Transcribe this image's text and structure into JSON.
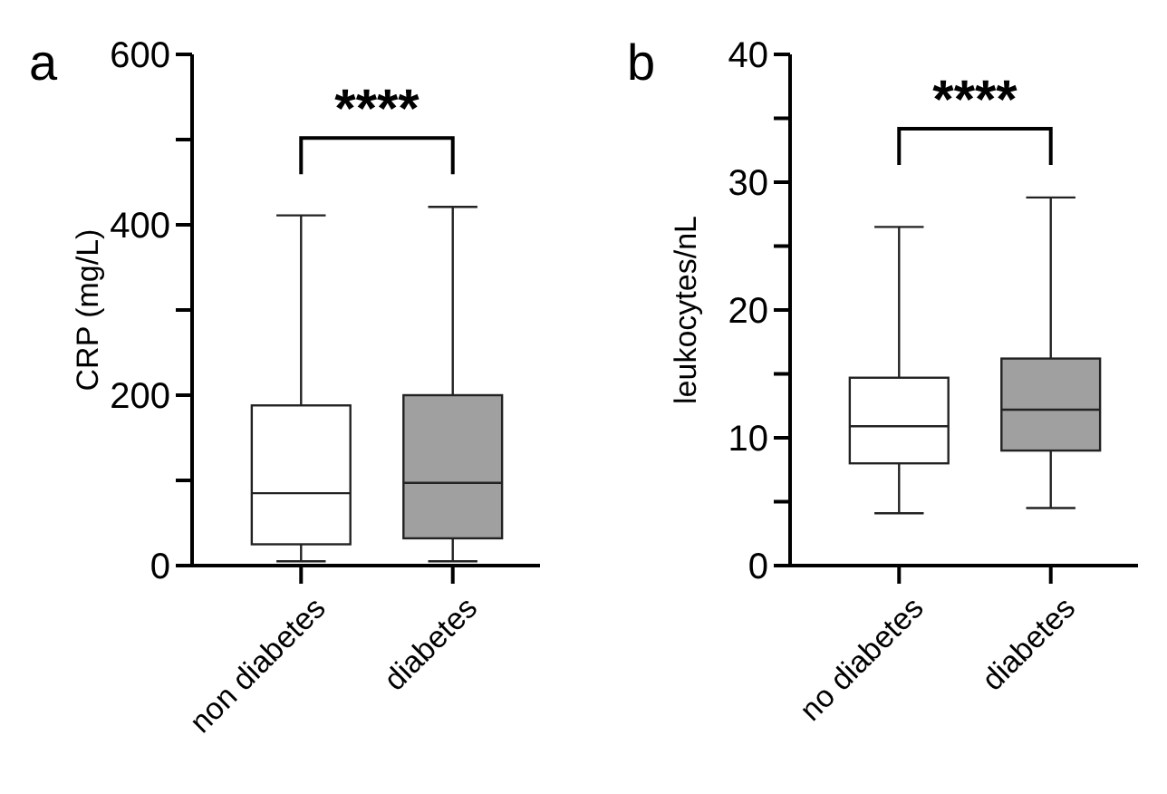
{
  "chart_data": [
    {
      "type": "box",
      "title": "a",
      "ylabel": "CRP (mg/L)",
      "categories": [
        "non diabetes",
        "diabetes"
      ],
      "colors": [
        "#ffffff",
        "#a0a0a0"
      ],
      "ylim": [
        0,
        600
      ],
      "yticks": [
        0,
        {
          "value": 100,
          "label": null
        },
        200,
        {
          "value": 300,
          "label": null
        },
        400,
        {
          "value": 500,
          "label": null
        },
        600
      ],
      "annotations": [
        "****"
      ],
      "boxes": [
        {
          "low": 5,
          "q1": 25,
          "median": 85,
          "q3": 188,
          "high": 411
        },
        {
          "low": 5,
          "q1": 32,
          "median": 97,
          "q3": 200,
          "high": 421
        }
      ]
    },
    {
      "type": "box",
      "title": "b",
      "ylabel": "leukocytes/nL",
      "categories": [
        "no diabetes",
        "diabetes"
      ],
      "colors": [
        "#ffffff",
        "#a0a0a0"
      ],
      "ylim": [
        0,
        40
      ],
      "yticks": [
        0,
        {
          "value": 5,
          "label": null
        },
        10,
        {
          "value": 15,
          "label": null
        },
        20,
        {
          "value": 25,
          "label": null
        },
        30,
        {
          "value": 35,
          "label": null
        },
        40
      ],
      "annotations": [
        "****"
      ],
      "boxes": [
        {
          "low": 4.1,
          "q1": 8.0,
          "median": 10.9,
          "q3": 14.7,
          "high": 26.5
        },
        {
          "low": 4.5,
          "q1": 9.0,
          "median": 12.2,
          "q3": 16.2,
          "high": 28.8
        }
      ]
    }
  ]
}
